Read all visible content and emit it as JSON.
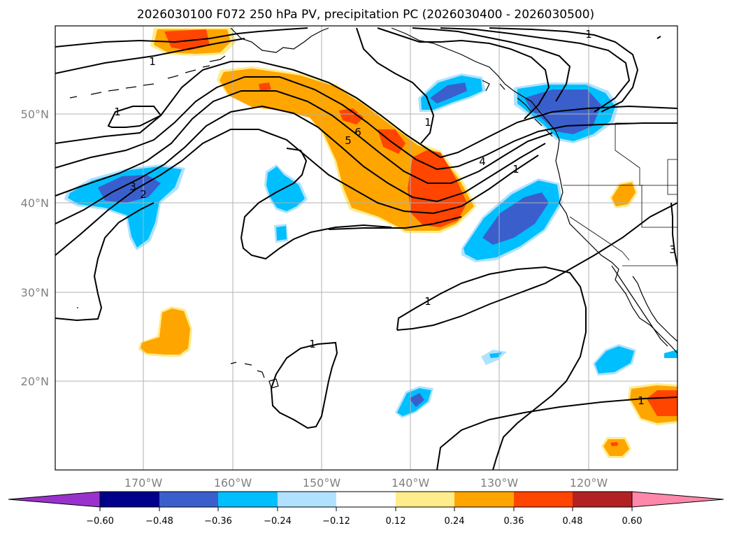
{
  "title": "2026030100 F072 250 hPa PV, precipitation PC (2026030400 - 2026030500)",
  "lat_labels": [
    "50°N",
    "40°N",
    "30°N",
    "20°N"
  ],
  "lon_labels": [
    "170°W",
    "160°W",
    "150°W",
    "140°W",
    "130°W",
    "120°W"
  ],
  "colorbar": {
    "colors": [
      "#9932cc",
      "#00008b",
      "#3a5fcd",
      "#00bfff",
      "#b0e2ff",
      "#ffffff",
      "#ffec8b",
      "#ffa500",
      "#ff4500",
      "#b22222",
      "#ff88aa"
    ],
    "tick_labels": [
      "−0.60",
      "−0.48",
      "−0.36",
      "−0.24",
      "−0.12",
      "0.12",
      "0.24",
      "0.36",
      "0.48",
      "0.60"
    ]
  },
  "contour_labels": [
    "1",
    "1",
    "1",
    "1",
    "1",
    "1",
    "1",
    "1",
    "2",
    "3",
    "3",
    "4",
    "5",
    "6"
  ],
  "legend": {
    "colors": {
      "ocean": "#ffffff",
      "land": "#ffffff",
      "coast": "#000000",
      "grid": "#b0b0b0",
      "contour": "#000000"
    }
  }
}
